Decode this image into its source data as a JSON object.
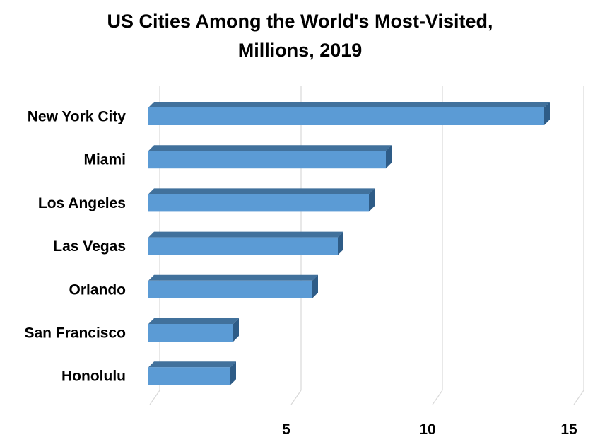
{
  "chart_data": {
    "type": "bar",
    "orientation": "horizontal",
    "style": "3d",
    "title_lines": [
      "US Cities Among the World's Most-Visited,",
      "Millions, 2019"
    ],
    "categories": [
      "New York City",
      "Miami",
      "Los Angeles",
      "Las Vegas",
      "Orlando",
      "San Francisco",
      "Honolulu"
    ],
    "values": [
      14.0,
      8.4,
      7.8,
      6.7,
      5.8,
      3.0,
      2.9
    ],
    "xlim": [
      0,
      15
    ],
    "xticks": [
      5,
      10,
      15
    ],
    "xtick_labels": [
      "5",
      "10",
      "15"
    ],
    "grid": true,
    "bar_color": "#5B9BD5",
    "bar_top_color": "#41719C",
    "bar_side_color": "#2E5C87",
    "grid_color": "#D9D9D9"
  }
}
